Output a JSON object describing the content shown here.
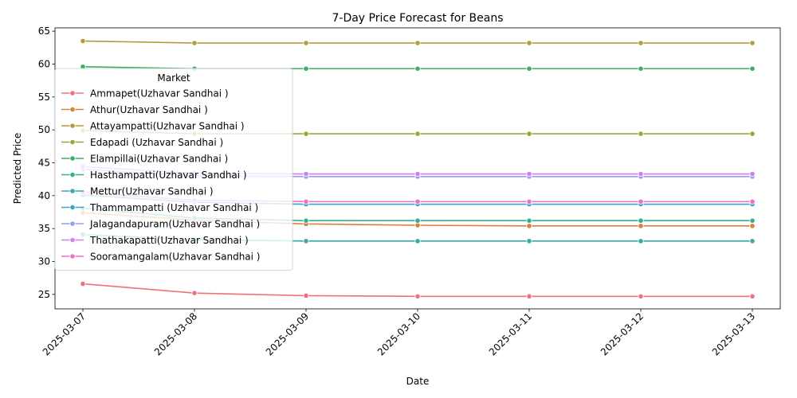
{
  "chart_data": {
    "type": "line",
    "title": "7-Day Price Forecast for Beans",
    "xlabel": "Date",
    "ylabel": "Predicted Price",
    "x": [
      "2025-03-07",
      "2025-03-08",
      "2025-03-09",
      "2025-03-10",
      "2025-03-11",
      "2025-03-12",
      "2025-03-13"
    ],
    "ylim": [
      22.8,
      65.5
    ],
    "yticks": [
      25,
      30,
      35,
      40,
      45,
      50,
      55,
      60,
      65
    ],
    "grid": false,
    "legend": {
      "title": "Market",
      "placement": "upper-left"
    },
    "series": [
      {
        "name": "Ammapet(Uzhavar Sandhai )",
        "color": "#f0707f",
        "values": [
          26.6,
          25.2,
          24.8,
          24.7,
          24.7,
          24.7,
          24.7
        ]
      },
      {
        "name": "Athur(Uzhavar Sandhai )",
        "color": "#da8235",
        "values": [
          37.4,
          36.3,
          35.7,
          35.5,
          35.4,
          35.4,
          35.4
        ]
      },
      {
        "name": "Attayampatti(Uzhavar Sandhai )",
        "color": "#b69b38",
        "values": [
          63.5,
          63.2,
          63.2,
          63.2,
          63.2,
          63.2,
          63.2
        ]
      },
      {
        "name": "Edapadi (Uzhavar Sandhai )",
        "color": "#98a63a",
        "values": [
          49.9,
          49.4,
          49.4,
          49.4,
          49.4,
          49.4,
          49.4
        ]
      },
      {
        "name": "Elampillai(Uzhavar Sandhai )",
        "color": "#3cb05e",
        "values": [
          59.6,
          59.3,
          59.3,
          59.3,
          59.3,
          59.3,
          59.3
        ]
      },
      {
        "name": "Hasthampatti(Uzhavar Sandhai )",
        "color": "#36ae92",
        "values": [
          38.1,
          36.6,
          36.2,
          36.2,
          36.2,
          36.2,
          36.2
        ]
      },
      {
        "name": "Mettur(Uzhavar Sandhai )",
        "color": "#38aaab",
        "values": [
          34.1,
          33.3,
          33.1,
          33.1,
          33.1,
          33.1,
          33.1
        ]
      },
      {
        "name": "Thammampatti (Uzhavar Sandhai )",
        "color": "#3ba3c8",
        "values": [
          40.1,
          39.0,
          38.7,
          38.7,
          38.7,
          38.7,
          38.7
        ]
      },
      {
        "name": "Jalagandapuram(Uzhavar Sandhai )",
        "color": "#949ef0",
        "values": [
          44.0,
          43.0,
          42.9,
          42.9,
          42.9,
          42.9,
          42.9
        ]
      },
      {
        "name": "Thathakapatti(Uzhavar Sandhai )",
        "color": "#d37df0",
        "values": [
          44.4,
          43.4,
          43.3,
          43.3,
          43.3,
          43.3,
          43.3
        ]
      },
      {
        "name": "Sooramangalam(Uzhavar Sandhai )",
        "color": "#f06fc6",
        "values": [
          40.5,
          39.3,
          39.1,
          39.1,
          39.1,
          39.1,
          39.1
        ]
      }
    ]
  }
}
